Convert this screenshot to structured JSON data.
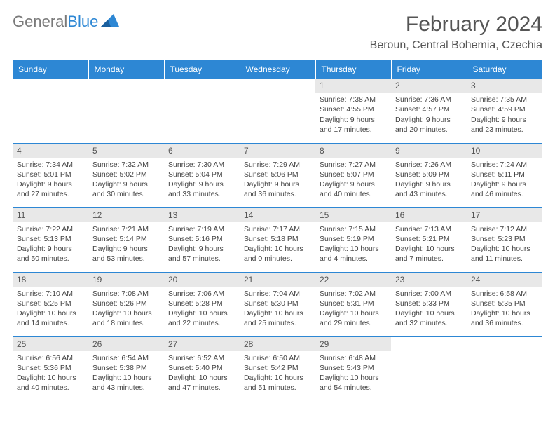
{
  "logo": {
    "part1": "General",
    "part2": "Blue"
  },
  "title": "February 2024",
  "location": "Beroun, Central Bohemia, Czechia",
  "headers": [
    "Sunday",
    "Monday",
    "Tuesday",
    "Wednesday",
    "Thursday",
    "Friday",
    "Saturday"
  ],
  "colors": {
    "header_bg": "#2d87d4",
    "daynum_bg": "#e8e8e8",
    "text": "#444"
  },
  "weeks": [
    [
      null,
      null,
      null,
      null,
      {
        "n": "1",
        "sr": "7:38 AM",
        "ss": "4:55 PM",
        "dl": "9 hours and 17 minutes."
      },
      {
        "n": "2",
        "sr": "7:36 AM",
        "ss": "4:57 PM",
        "dl": "9 hours and 20 minutes."
      },
      {
        "n": "3",
        "sr": "7:35 AM",
        "ss": "4:59 PM",
        "dl": "9 hours and 23 minutes."
      }
    ],
    [
      {
        "n": "4",
        "sr": "7:34 AM",
        "ss": "5:01 PM",
        "dl": "9 hours and 27 minutes."
      },
      {
        "n": "5",
        "sr": "7:32 AM",
        "ss": "5:02 PM",
        "dl": "9 hours and 30 minutes."
      },
      {
        "n": "6",
        "sr": "7:30 AM",
        "ss": "5:04 PM",
        "dl": "9 hours and 33 minutes."
      },
      {
        "n": "7",
        "sr": "7:29 AM",
        "ss": "5:06 PM",
        "dl": "9 hours and 36 minutes."
      },
      {
        "n": "8",
        "sr": "7:27 AM",
        "ss": "5:07 PM",
        "dl": "9 hours and 40 minutes."
      },
      {
        "n": "9",
        "sr": "7:26 AM",
        "ss": "5:09 PM",
        "dl": "9 hours and 43 minutes."
      },
      {
        "n": "10",
        "sr": "7:24 AM",
        "ss": "5:11 PM",
        "dl": "9 hours and 46 minutes."
      }
    ],
    [
      {
        "n": "11",
        "sr": "7:22 AM",
        "ss": "5:13 PM",
        "dl": "9 hours and 50 minutes."
      },
      {
        "n": "12",
        "sr": "7:21 AM",
        "ss": "5:14 PM",
        "dl": "9 hours and 53 minutes."
      },
      {
        "n": "13",
        "sr": "7:19 AM",
        "ss": "5:16 PM",
        "dl": "9 hours and 57 minutes."
      },
      {
        "n": "14",
        "sr": "7:17 AM",
        "ss": "5:18 PM",
        "dl": "10 hours and 0 minutes."
      },
      {
        "n": "15",
        "sr": "7:15 AM",
        "ss": "5:19 PM",
        "dl": "10 hours and 4 minutes."
      },
      {
        "n": "16",
        "sr": "7:13 AM",
        "ss": "5:21 PM",
        "dl": "10 hours and 7 minutes."
      },
      {
        "n": "17",
        "sr": "7:12 AM",
        "ss": "5:23 PM",
        "dl": "10 hours and 11 minutes."
      }
    ],
    [
      {
        "n": "18",
        "sr": "7:10 AM",
        "ss": "5:25 PM",
        "dl": "10 hours and 14 minutes."
      },
      {
        "n": "19",
        "sr": "7:08 AM",
        "ss": "5:26 PM",
        "dl": "10 hours and 18 minutes."
      },
      {
        "n": "20",
        "sr": "7:06 AM",
        "ss": "5:28 PM",
        "dl": "10 hours and 22 minutes."
      },
      {
        "n": "21",
        "sr": "7:04 AM",
        "ss": "5:30 PM",
        "dl": "10 hours and 25 minutes."
      },
      {
        "n": "22",
        "sr": "7:02 AM",
        "ss": "5:31 PM",
        "dl": "10 hours and 29 minutes."
      },
      {
        "n": "23",
        "sr": "7:00 AM",
        "ss": "5:33 PM",
        "dl": "10 hours and 32 minutes."
      },
      {
        "n": "24",
        "sr": "6:58 AM",
        "ss": "5:35 PM",
        "dl": "10 hours and 36 minutes."
      }
    ],
    [
      {
        "n": "25",
        "sr": "6:56 AM",
        "ss": "5:36 PM",
        "dl": "10 hours and 40 minutes."
      },
      {
        "n": "26",
        "sr": "6:54 AM",
        "ss": "5:38 PM",
        "dl": "10 hours and 43 minutes."
      },
      {
        "n": "27",
        "sr": "6:52 AM",
        "ss": "5:40 PM",
        "dl": "10 hours and 47 minutes."
      },
      {
        "n": "28",
        "sr": "6:50 AM",
        "ss": "5:42 PM",
        "dl": "10 hours and 51 minutes."
      },
      {
        "n": "29",
        "sr": "6:48 AM",
        "ss": "5:43 PM",
        "dl": "10 hours and 54 minutes."
      },
      null,
      null
    ]
  ]
}
